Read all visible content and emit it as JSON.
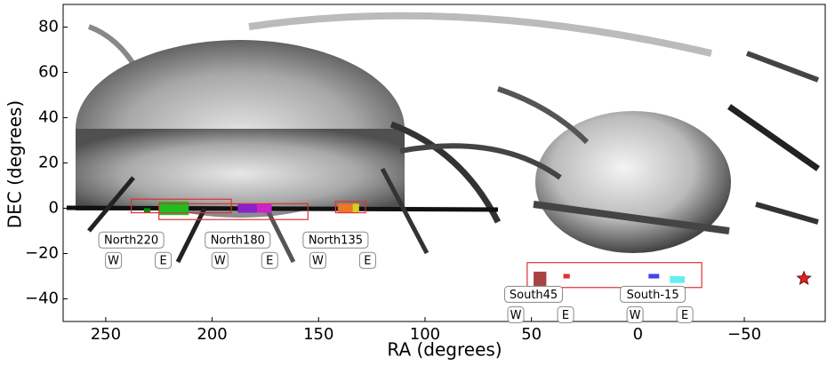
{
  "chart_data": {
    "type": "sky",
    "x_label": "RA (degrees)",
    "y_label": "DEC (degrees)",
    "xlim": [
      270,
      -88
    ],
    "ylim": [
      -50,
      90
    ],
    "xticks": [
      250,
      200,
      150,
      100,
      50,
      0,
      {
        "value": -50,
        "label": "−50"
      }
    ],
    "yticks": [
      {
        "value": -40,
        "label": "−40"
      },
      {
        "value": -20,
        "label": "−20"
      },
      0,
      20,
      40,
      60,
      80
    ],
    "box_color": "#dd3333",
    "boxes": [
      {
        "ra": [
          238,
          191
        ],
        "dec": [
          4,
          -2
        ]
      },
      {
        "ra": [
          225,
          155
        ],
        "dec": [
          2,
          -5
        ]
      },
      {
        "ra": [
          142,
          128
        ],
        "dec": [
          3,
          -2
        ]
      },
      {
        "ra": [
          52,
          -30
        ],
        "dec": [
          -24,
          -35
        ]
      }
    ],
    "patches": [
      {
        "ra": [
          232,
          229
        ],
        "dec": [
          0,
          -2
        ],
        "color": "#118811"
      },
      {
        "ra": [
          225,
          211
        ],
        "dec": [
          3,
          -3
        ],
        "color": "#22bb22"
      },
      {
        "ra": [
          188,
          179
        ],
        "dec": [
          2,
          -2
        ],
        "color": "#8822cc"
      },
      {
        "ra": [
          179,
          172
        ],
        "dec": [
          2,
          -2
        ],
        "color": "#cc22cc"
      },
      {
        "ra": [
          141,
          134
        ],
        "dec": [
          2,
          -2
        ],
        "color": "#ee7722"
      },
      {
        "ra": [
          134,
          131
        ],
        "dec": [
          2,
          -2
        ],
        "color": "#ddcc22"
      },
      {
        "ra": [
          49,
          43
        ],
        "dec": [
          -28,
          -35
        ],
        "color": "#aa4444"
      },
      {
        "ra": [
          35,
          32
        ],
        "dec": [
          -29,
          -31
        ],
        "color": "#dd3333"
      },
      {
        "ra": [
          -5,
          -10
        ],
        "dec": [
          -29,
          -31
        ],
        "color": "#4444ee"
      },
      {
        "ra": [
          -15,
          -22
        ],
        "dec": [
          -30,
          -33
        ],
        "color": "#66eeee"
      }
    ],
    "fields": [
      {
        "name": "North220",
        "ra": 238,
        "dec": -14,
        "w_label": "W",
        "e_label": "E"
      },
      {
        "name": "North180",
        "ra": 188,
        "dec": -14,
        "w_label": "W",
        "e_label": "E"
      },
      {
        "name": "North135",
        "ra": 142,
        "dec": -14,
        "w_label": "W",
        "e_label": "E"
      },
      {
        "name": "South45",
        "ra": 49,
        "dec": -38,
        "w_label": "W",
        "e_label": "E"
      },
      {
        "name": "South-15",
        "ra": -7,
        "dec": -38,
        "w_label": "W",
        "e_label": "E"
      }
    ],
    "star": {
      "ra": -78,
      "dec": -31,
      "color": "#dd2222"
    }
  }
}
